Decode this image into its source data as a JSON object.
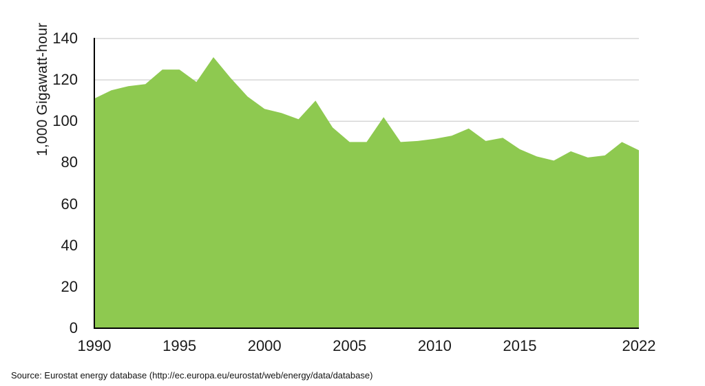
{
  "figure": {
    "y_axis_title": "1,000 Gigawatt-hour",
    "source_caption": "Source: Eurostat energy database (http://ec.europa.eu/eurostat/web/energy/data/database)"
  },
  "chart_data": {
    "type": "area",
    "title": "",
    "xlabel": "",
    "ylabel": "1,000 Gigawatt-hour",
    "x": [
      1990,
      1991,
      1992,
      1993,
      1994,
      1995,
      1996,
      1997,
      1998,
      1999,
      2000,
      2001,
      2002,
      2003,
      2004,
      2005,
      2006,
      2007,
      2008,
      2009,
      2010,
      2011,
      2012,
      2013,
      2014,
      2015,
      2016,
      2017,
      2018,
      2019,
      2020,
      2021,
      2022
    ],
    "values": [
      111,
      115,
      117,
      118,
      125,
      125,
      119,
      131,
      121,
      112,
      106,
      104,
      101,
      110,
      97,
      90,
      90,
      102,
      90,
      90.5,
      91.5,
      93,
      96.5,
      90.5,
      92,
      86.5,
      83,
      81,
      85.5,
      82.5,
      83.5,
      90,
      86
    ],
    "ylim": [
      0,
      140
    ],
    "yticks": [
      0,
      20,
      40,
      60,
      80,
      100,
      120,
      140
    ],
    "xticks": [
      1990,
      1995,
      2000,
      2005,
      2010,
      2015,
      2022
    ],
    "grid": true,
    "legend_position": "none",
    "colors": {
      "fill": "#8EC950",
      "gridline": "#CFCFCF",
      "axis": "#000000",
      "text": "#1A1A1A"
    }
  }
}
